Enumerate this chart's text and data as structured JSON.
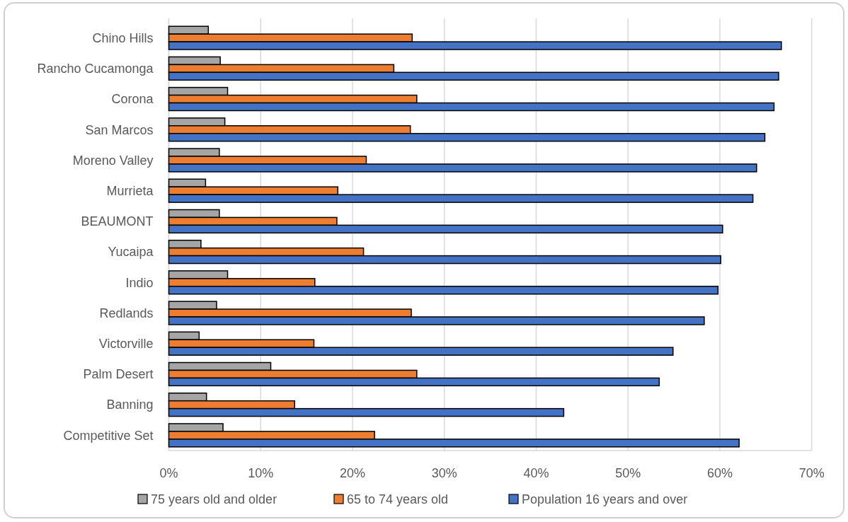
{
  "chart_data": {
    "type": "bar",
    "orientation": "horizontal",
    "categories": [
      "Chino Hills",
      "Rancho Cucamonga",
      "Corona",
      "San Marcos",
      "Moreno Valley",
      "Murrieta",
      "BEAUMONT",
      "Yucaipa",
      "Indio",
      "Redlands",
      "Victorville",
      "Palm Desert",
      "Banning",
      "Competitive Set"
    ],
    "series": [
      {
        "name": "75 years old and older",
        "color": "#a5a5a5",
        "values": [
          4.3,
          5.6,
          6.4,
          6.1,
          5.5,
          4.0,
          5.5,
          3.5,
          6.4,
          5.2,
          3.3,
          11.1,
          4.1,
          5.9
        ]
      },
      {
        "name": "65 to 74 years old",
        "color": "#ed7d31",
        "values": [
          26.5,
          24.5,
          27.0,
          26.3,
          21.5,
          18.4,
          18.3,
          21.2,
          15.9,
          26.4,
          15.8,
          27.0,
          13.7,
          22.4
        ]
      },
      {
        "name": "Population 16 years and over",
        "color": "#4472c4",
        "values": [
          66.7,
          66.4,
          65.9,
          64.9,
          64.0,
          63.6,
          60.3,
          60.1,
          59.8,
          58.3,
          54.9,
          53.4,
          43.0,
          62.1
        ]
      }
    ],
    "xlim": [
      0,
      70
    ],
    "xticks": [
      {
        "value": 0,
        "label": "0%"
      },
      {
        "value": 10,
        "label": "10%"
      },
      {
        "value": 20,
        "label": "20%"
      },
      {
        "value": 30,
        "label": "30%"
      },
      {
        "value": 40,
        "label": "40%"
      },
      {
        "value": 50,
        "label": "50%"
      },
      {
        "value": 60,
        "label": "60%"
      },
      {
        "value": 70,
        "label": "70%"
      }
    ],
    "grid": "x",
    "legend": "bottom"
  }
}
